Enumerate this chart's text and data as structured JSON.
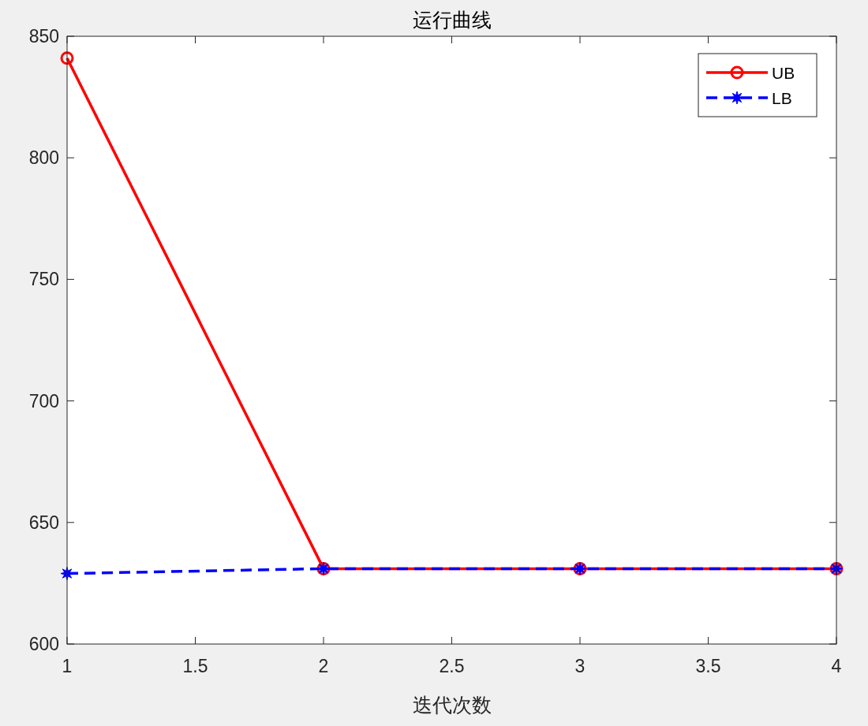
{
  "chart_data": {
    "type": "line",
    "title": "运行曲线",
    "xlabel": "迭代次数",
    "x": [
      1,
      2,
      3,
      4
    ],
    "series": [
      {
        "name": "UB",
        "color": "#ff0000",
        "values": [
          841,
          631,
          631,
          631
        ],
        "marker": "circle",
        "line_style": "solid"
      },
      {
        "name": "LB",
        "color": "#0000ff",
        "values": [
          629,
          631,
          631,
          631
        ],
        "marker": "star",
        "line_style": "dashed"
      }
    ],
    "xlim": [
      1,
      4
    ],
    "xticks": [
      1,
      1.5,
      2,
      2.5,
      3,
      3.5,
      4
    ],
    "ylim": [
      600,
      850
    ],
    "yticks": [
      600,
      650,
      700,
      750,
      800,
      850
    ],
    "grid": false,
    "legend": "top right"
  }
}
